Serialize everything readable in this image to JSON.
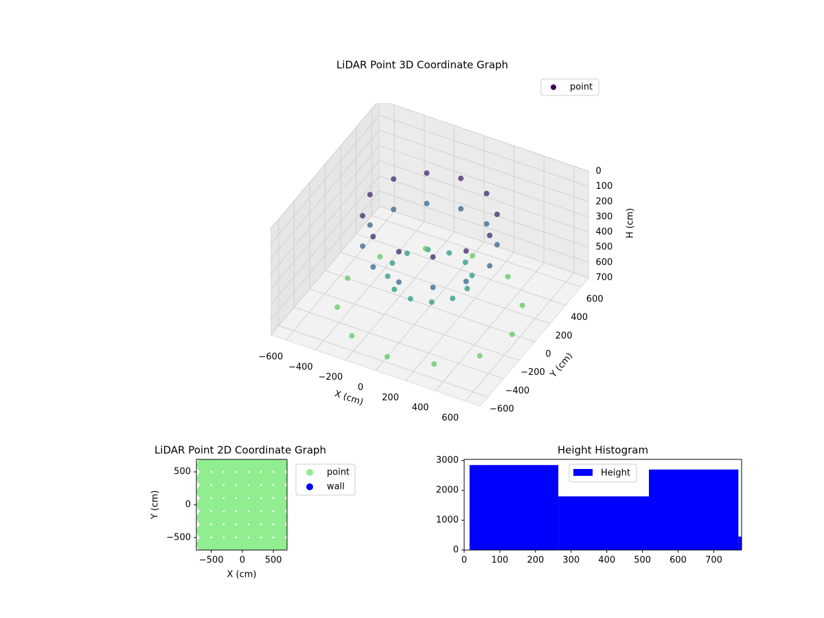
{
  "chart_data": [
    {
      "type": "scatter3d",
      "title": "LiDAR Point 3D Coordinate Graph",
      "xlabel": "X (cm)",
      "ylabel": "Y (cm)",
      "zlabel": "H (cm)",
      "xlim": [
        -700,
        700
      ],
      "ylim": [
        -700,
        700
      ],
      "zlim": [
        0,
        700
      ],
      "z_inverted": true,
      "xticks": [
        {
          "value": -600,
          "label": "−600"
        },
        {
          "value": -400,
          "label": "−400"
        },
        {
          "value": -200,
          "label": "−200"
        },
        0,
        200,
        400,
        600
      ],
      "yticks": [
        {
          "value": -600,
          "label": "−600"
        },
        {
          "value": -400,
          "label": "−400"
        },
        {
          "value": -200,
          "label": "−200"
        },
        0,
        200,
        400,
        600
      ],
      "zticks": [
        0,
        100,
        200,
        300,
        400,
        500,
        600,
        700
      ],
      "colormap": "viridis",
      "legend": "upper right",
      "series": [
        {
          "name": "point",
          "color": "#440154",
          "x": [
            400,
            346,
            200,
            0,
            -200,
            -346,
            -400,
            -346,
            -200,
            0,
            200,
            346,
            400,
            346,
            200,
            0,
            -200,
            -346,
            -400,
            -346,
            -200,
            0,
            200,
            346,
            250,
            217,
            125,
            0,
            -125,
            -217,
            -250,
            -217,
            -125,
            0,
            125,
            217,
            550,
            476,
            275,
            0,
            -275,
            -476,
            -550,
            -476,
            -275,
            0,
            275,
            476
          ],
          "y": [
            0,
            200,
            346,
            400,
            346,
            200,
            0,
            -200,
            -346,
            -400,
            -346,
            -200,
            0,
            200,
            346,
            400,
            346,
            200,
            0,
            -200,
            -346,
            -400,
            -346,
            -200,
            0,
            125,
            217,
            250,
            217,
            125,
            0,
            -125,
            -217,
            -250,
            -217,
            -125,
            0,
            275,
            476,
            550,
            476,
            275,
            0,
            -275,
            -476,
            -550,
            -476,
            -275
          ],
          "z": [
            100,
            100,
            100,
            100,
            100,
            100,
            100,
            100,
            100,
            100,
            100,
            100,
            300,
            300,
            300,
            300,
            300,
            300,
            300,
            300,
            300,
            300,
            300,
            300,
            500,
            500,
            500,
            500,
            500,
            500,
            500,
            500,
            500,
            500,
            500,
            500,
            700,
            700,
            700,
            700,
            700,
            700,
            700,
            700,
            700,
            700,
            700,
            700
          ]
        }
      ]
    },
    {
      "type": "scatter",
      "title": "LiDAR Point 2D Coordinate Graph",
      "xlabel": "X (cm)",
      "ylabel": "Y (cm)",
      "xlim": [
        -740,
        720
      ],
      "ylim": [
        -690,
        690
      ],
      "xticks": [
        {
          "value": -500,
          "label": "−500"
        },
        0,
        500
      ],
      "yticks": [
        {
          "value": -500,
          "label": "−500"
        },
        0,
        500
      ],
      "legend": "outside right",
      "series": [
        {
          "name": "point",
          "color": "#90ee90",
          "x": [
            -600,
            -400,
            -200,
            0,
            200,
            400,
            600,
            -600,
            -400,
            -200,
            0,
            200,
            400,
            600,
            -600,
            -400,
            -200,
            0,
            200,
            400,
            600,
            -600,
            -400,
            -200,
            0,
            200,
            400,
            600,
            -600,
            -400,
            -200,
            0,
            200,
            400,
            600,
            -600,
            -400,
            -200,
            0,
            200,
            400,
            600,
            -600,
            -400,
            -200,
            0,
            200,
            400,
            600
          ],
          "y": [
            -600,
            -600,
            -600,
            -600,
            -600,
            -600,
            -600,
            -400,
            -400,
            -400,
            -400,
            -400,
            -400,
            -400,
            -200,
            -200,
            -200,
            -200,
            -200,
            -200,
            -200,
            0,
            0,
            0,
            0,
            0,
            0,
            0,
            200,
            200,
            200,
            200,
            200,
            200,
            200,
            400,
            400,
            400,
            400,
            400,
            400,
            400,
            600,
            600,
            600,
            600,
            600,
            600,
            600
          ]
        },
        {
          "name": "wall",
          "color": "#0000ff",
          "x": [],
          "y": []
        }
      ]
    },
    {
      "type": "histogram",
      "title": "Height Histogram",
      "legend": "upper center",
      "xlim": [
        0,
        778
      ],
      "ylim": [
        0,
        3040
      ],
      "xticks": [
        0,
        100,
        200,
        300,
        400,
        500,
        600,
        700
      ],
      "yticks": [
        0,
        1000,
        2000,
        3000
      ],
      "series": [
        {
          "name": "Height",
          "color": "#0000ff",
          "bins": [
            15,
            264,
            518,
            769,
            778
          ],
          "values": [
            2850,
            1800,
            2700,
            450
          ]
        }
      ]
    }
  ]
}
